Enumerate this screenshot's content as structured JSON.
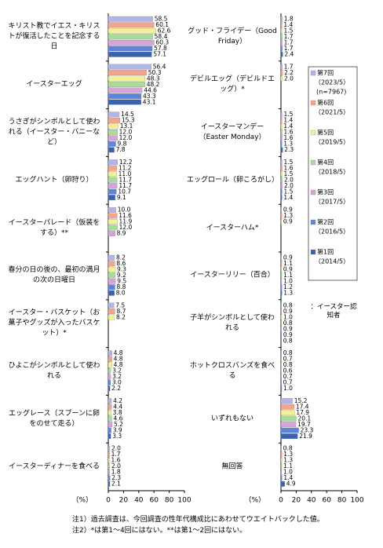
{
  "chart_data": [
    {
      "type": "bar",
      "horizontal": true,
      "categories": [
        "キリスト教でイエス・キリストが復活したことを記念する日",
        "イースターエッグ",
        "うさぎがシンボルとして使われる（イースター・バニーなど）",
        "エッグハント（卵狩り）",
        "イースターパレード（仮装をする）**",
        "春分の日の後の、最初の満月の次の日曜日",
        "イースター・バスケット（お菓子やグッズが入ったバスケット）*",
        "ひよこがシンボルとして使われる",
        "エッグレース（スプーンに卵をのせて走る）",
        "イースターディナーを食べる"
      ],
      "series": [
        {
          "color": "#b3b5e8",
          "values": [
            58.5,
            56.4,
            14.5,
            12.2,
            10.0,
            8.2,
            7.5,
            4.8,
            4.2,
            2.0
          ],
          "value_labels": [
            "58.5",
            "56.4",
            "14.5",
            "12.2",
            "10.0",
            "8.2",
            "7.5",
            "4.8",
            "4.2",
            "2.0"
          ]
        },
        {
          "color": "#f4a48c",
          "values": [
            60.1,
            50.3,
            15.3,
            11.2,
            11.6,
            8.6,
            8.7,
            4.8,
            4.4,
            1.7
          ],
          "value_labels": [
            "60.1",
            "50.3",
            "15.3",
            "11.2",
            "11.6",
            "8.6",
            "8.7",
            "4.8",
            "4.4",
            "1.7"
          ]
        },
        {
          "color": "#f3f09a",
          "values": [
            62.6,
            48.3,
            13.1,
            11.0,
            11.9,
            9.3,
            8.2,
            4.8,
            3.8,
            1.6
          ],
          "value_labels": [
            "62.6",
            "48.3",
            "13.1",
            "11.0",
            "11.9",
            "9.3",
            "8.2",
            "4.8",
            "3.8",
            "1.6"
          ]
        },
        {
          "color": "#a8dc98",
          "values": [
            58.4,
            48.2,
            12.0,
            11.7,
            12.0,
            9.2,
            null,
            3.2,
            4.6,
            2.0
          ],
          "value_labels": [
            "58.4",
            "48.2",
            "12.0",
            "11.7",
            "12.0",
            "9.2",
            null,
            "3.2",
            "4.6",
            "2.0"
          ]
        },
        {
          "color": "#d5a5d8",
          "values": [
            60.3,
            44.6,
            12.0,
            11.7,
            8.9,
            9.5,
            null,
            3.2,
            5.2,
            1.8
          ],
          "value_labels": [
            "60.3",
            "44.6",
            "12.0",
            "11.7",
            "8.9",
            "9.5",
            null,
            "3.2",
            "5.2",
            "1.8"
          ]
        },
        {
          "color": "#5d86d8",
          "values": [
            57.8,
            43.3,
            9.8,
            10.7,
            null,
            8.8,
            null,
            3.0,
            3.9,
            2.3
          ],
          "value_labels": [
            "57.8",
            "43.3",
            "9.8",
            "10.7",
            null,
            "8.8",
            null,
            "3.0",
            "3.9",
            "2.3"
          ]
        },
        {
          "color": "#3b62ae",
          "values": [
            57.1,
            43.1,
            7.8,
            9.1,
            null,
            8.0,
            null,
            2.2,
            3.3,
            2.1
          ],
          "value_labels": [
            "57.1",
            "43.1",
            "7.8",
            "9.1",
            null,
            "8.0",
            null,
            "2.2",
            "3.3",
            "2.1"
          ]
        }
      ],
      "xlim": [
        0,
        100
      ],
      "xticks": [
        0,
        20,
        40,
        60,
        80,
        100
      ],
      "x_label": "（%）"
    },
    {
      "type": "bar",
      "horizontal": true,
      "categories": [
        "グッド・フライデー（Good Friday）",
        "デビルエッグ（デビルドエッグ）*",
        "イースターマンデー（Easter Monday）",
        "エッグロール（卵ころがし）",
        "イースターハム*",
        "イースターリリー（百合）",
        "子羊がシンボルとして使われる",
        "ホットクロスバンズを食べる",
        "いずれもない",
        "無回答"
      ],
      "series": [
        {
          "name": "第7回",
          "period": "（2023/5）",
          "n": "(n=7967)",
          "color": "#b3b5e8",
          "values": [
            1.8,
            1.7,
            1.5,
            1.5,
            0.9,
            0.9,
            0.8,
            0.8,
            15.2,
            0.8
          ],
          "value_labels": [
            "1.8",
            "1.7",
            "1.5",
            "1.5",
            "0.9",
            "0.9",
            "0.8",
            "0.8",
            "15.2",
            "0.8"
          ]
        },
        {
          "name": "第6回",
          "period": "（2021/5）",
          "color": "#f4a48c",
          "values": [
            1.4,
            2.2,
            1.4,
            1.6,
            1.3,
            1.1,
            0.9,
            0.7,
            17.4,
            1.3
          ],
          "value_labels": [
            "1.4",
            "2.2",
            "1.4",
            "1.6",
            "1.3",
            "1.1",
            "0.9",
            "0.7",
            "17.4",
            "1.3"
          ]
        },
        {
          "name": "第5回",
          "period": "（2019/5）",
          "color": "#f3f09a",
          "values": [
            1.5,
            2.0,
            1.4,
            1.5,
            0.9,
            0.9,
            1.0,
            0.8,
            17.9,
            1.3
          ],
          "value_labels": [
            "1.5",
            "2.0",
            "1.4",
            "1.5",
            "0.9",
            "0.9",
            "1.0",
            "0.8",
            "17.9",
            "1.3"
          ]
        },
        {
          "name": "第4回",
          "period": "（2018/5）",
          "color": "#a8dc98",
          "values": [
            1.7,
            null,
            1.6,
            2.0,
            null,
            1.1,
            0.8,
            0.6,
            20.1,
            1.1
          ],
          "value_labels": [
            "1.7",
            null,
            "1.6",
            "2.0",
            null,
            "1.1",
            "0.8",
            "0.6",
            "20.1",
            "1.1"
          ]
        },
        {
          "name": "第3回",
          "period": "（2017/5）",
          "color": "#d5a5d8",
          "values": [
            1.7,
            null,
            1.6,
            2.0,
            null,
            1.0,
            0.9,
            0.7,
            19.7,
            1.0
          ],
          "value_labels": [
            "1.7",
            null,
            "1.6",
            "2.0",
            null,
            "1.0",
            "0.9",
            "0.7",
            "19.7",
            "1.0"
          ]
        },
        {
          "name": "第2回",
          "period": "（2016/5）",
          "color": "#5d86d8",
          "values": [
            1.7,
            null,
            1.3,
            1.5,
            null,
            1.2,
            0.9,
            0.7,
            23.3,
            1.4
          ],
          "value_labels": [
            "1.7",
            null,
            "1.3",
            "1.5",
            null,
            "1.2",
            "0.9",
            "0.7",
            "23.3",
            "1.4"
          ]
        },
        {
          "name": "第1回",
          "period": "（2014/5）",
          "color": "#3b62ae",
          "values": [
            2.4,
            null,
            2.3,
            1.4,
            null,
            1.3,
            0.8,
            1.0,
            21.9,
            4.9
          ],
          "value_labels": [
            "2.4",
            null,
            "2.3",
            "1.4",
            null,
            "1.3",
            "0.8",
            "1.0",
            "21.9",
            "4.9"
          ]
        }
      ],
      "xlim": [
        0,
        100
      ],
      "xticks": [
        0,
        20,
        40,
        60,
        80,
        100
      ],
      "x_label": "（%）",
      "legend_note": "：イースター認知者"
    }
  ],
  "notes": [
    "注1）過去調査は、今回調査の性年代構成比にあわせてウエイトバックした値。",
    "注2）*は第1～4回にはない。**は第1～2回にはない。"
  ]
}
